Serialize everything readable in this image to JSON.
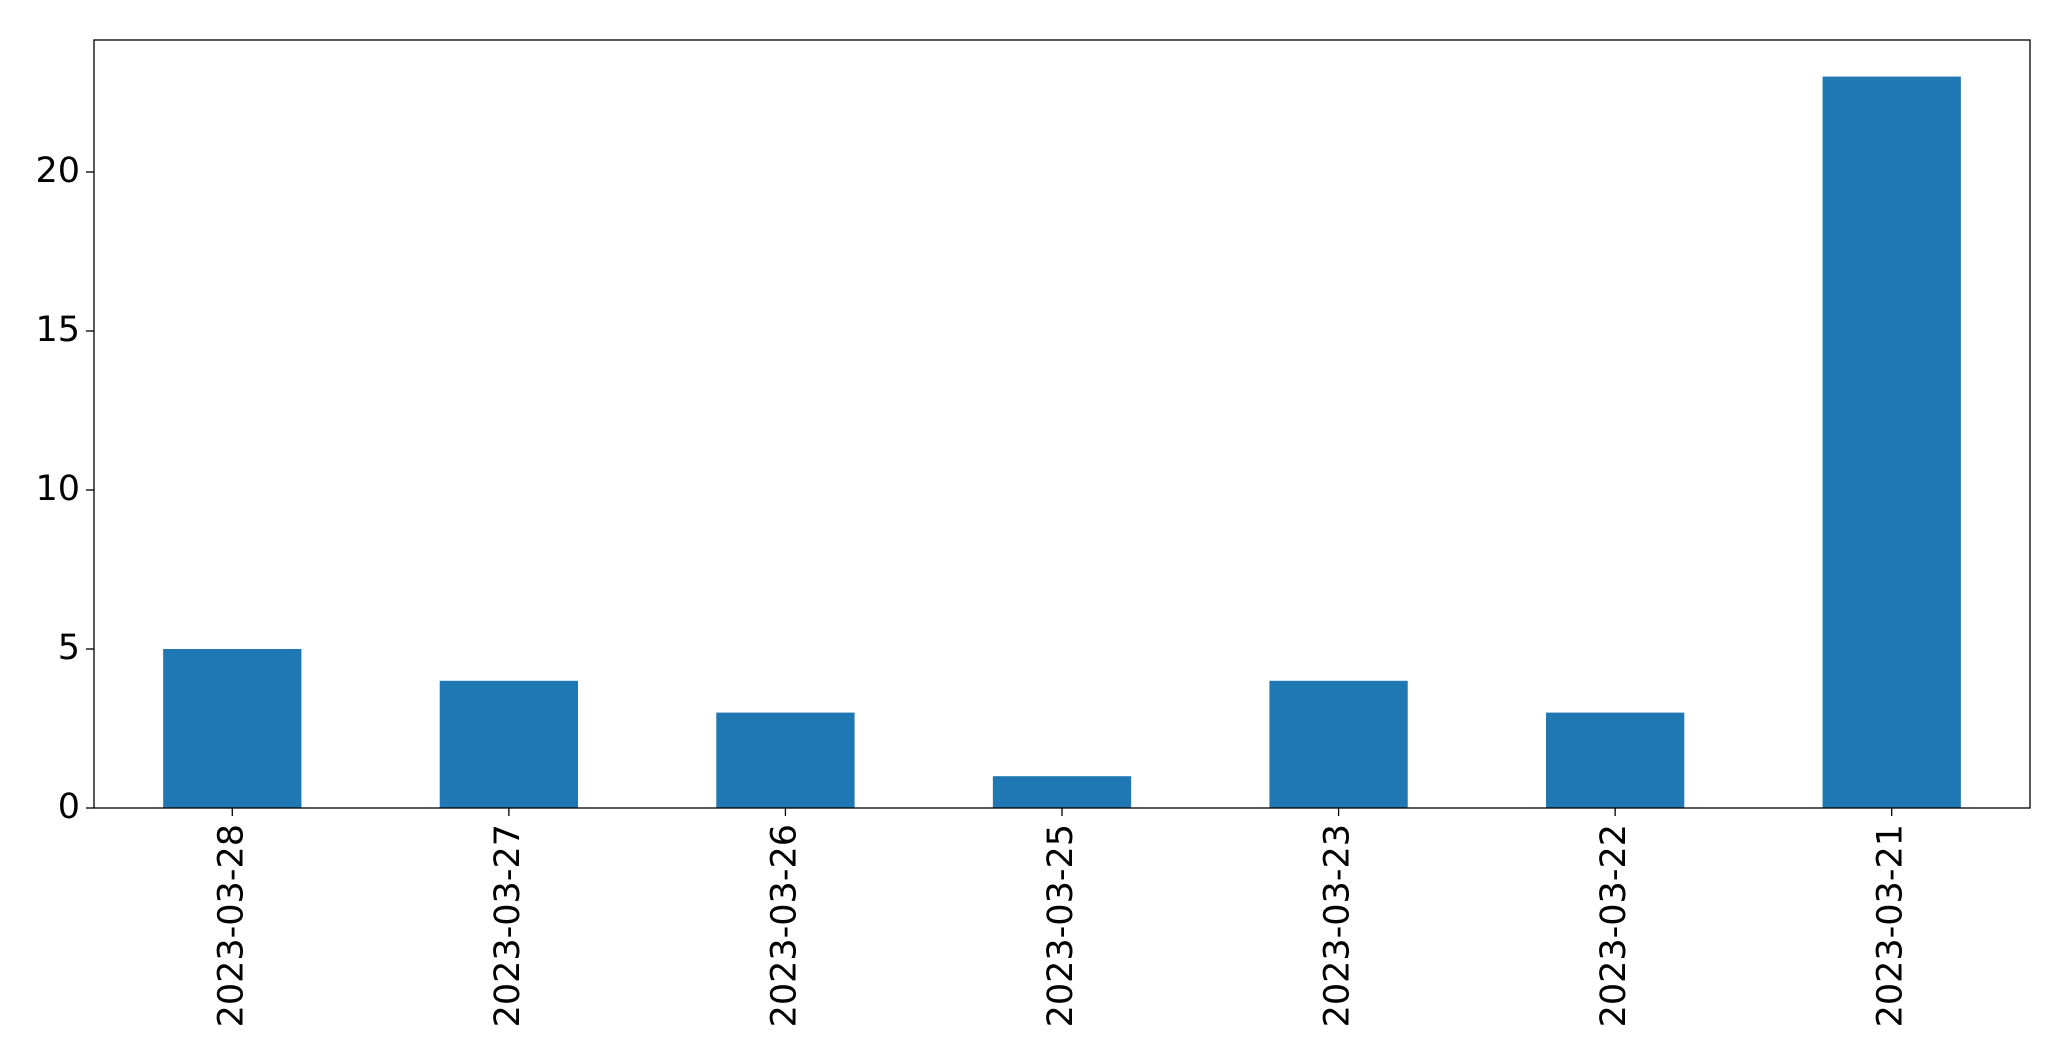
{
  "chart_data": {
    "type": "bar",
    "categories": [
      "2023-03-28",
      "2023-03-27",
      "2023-03-26",
      "2023-03-25",
      "2023-03-23",
      "2023-03-22",
      "2023-03-21"
    ],
    "values": [
      5,
      4,
      3,
      1,
      4,
      3,
      23
    ],
    "color": "#1f77b4",
    "ylim": [
      0,
      24.15
    ],
    "yticks": [
      0,
      5,
      10,
      15,
      20
    ],
    "grid": false
  }
}
